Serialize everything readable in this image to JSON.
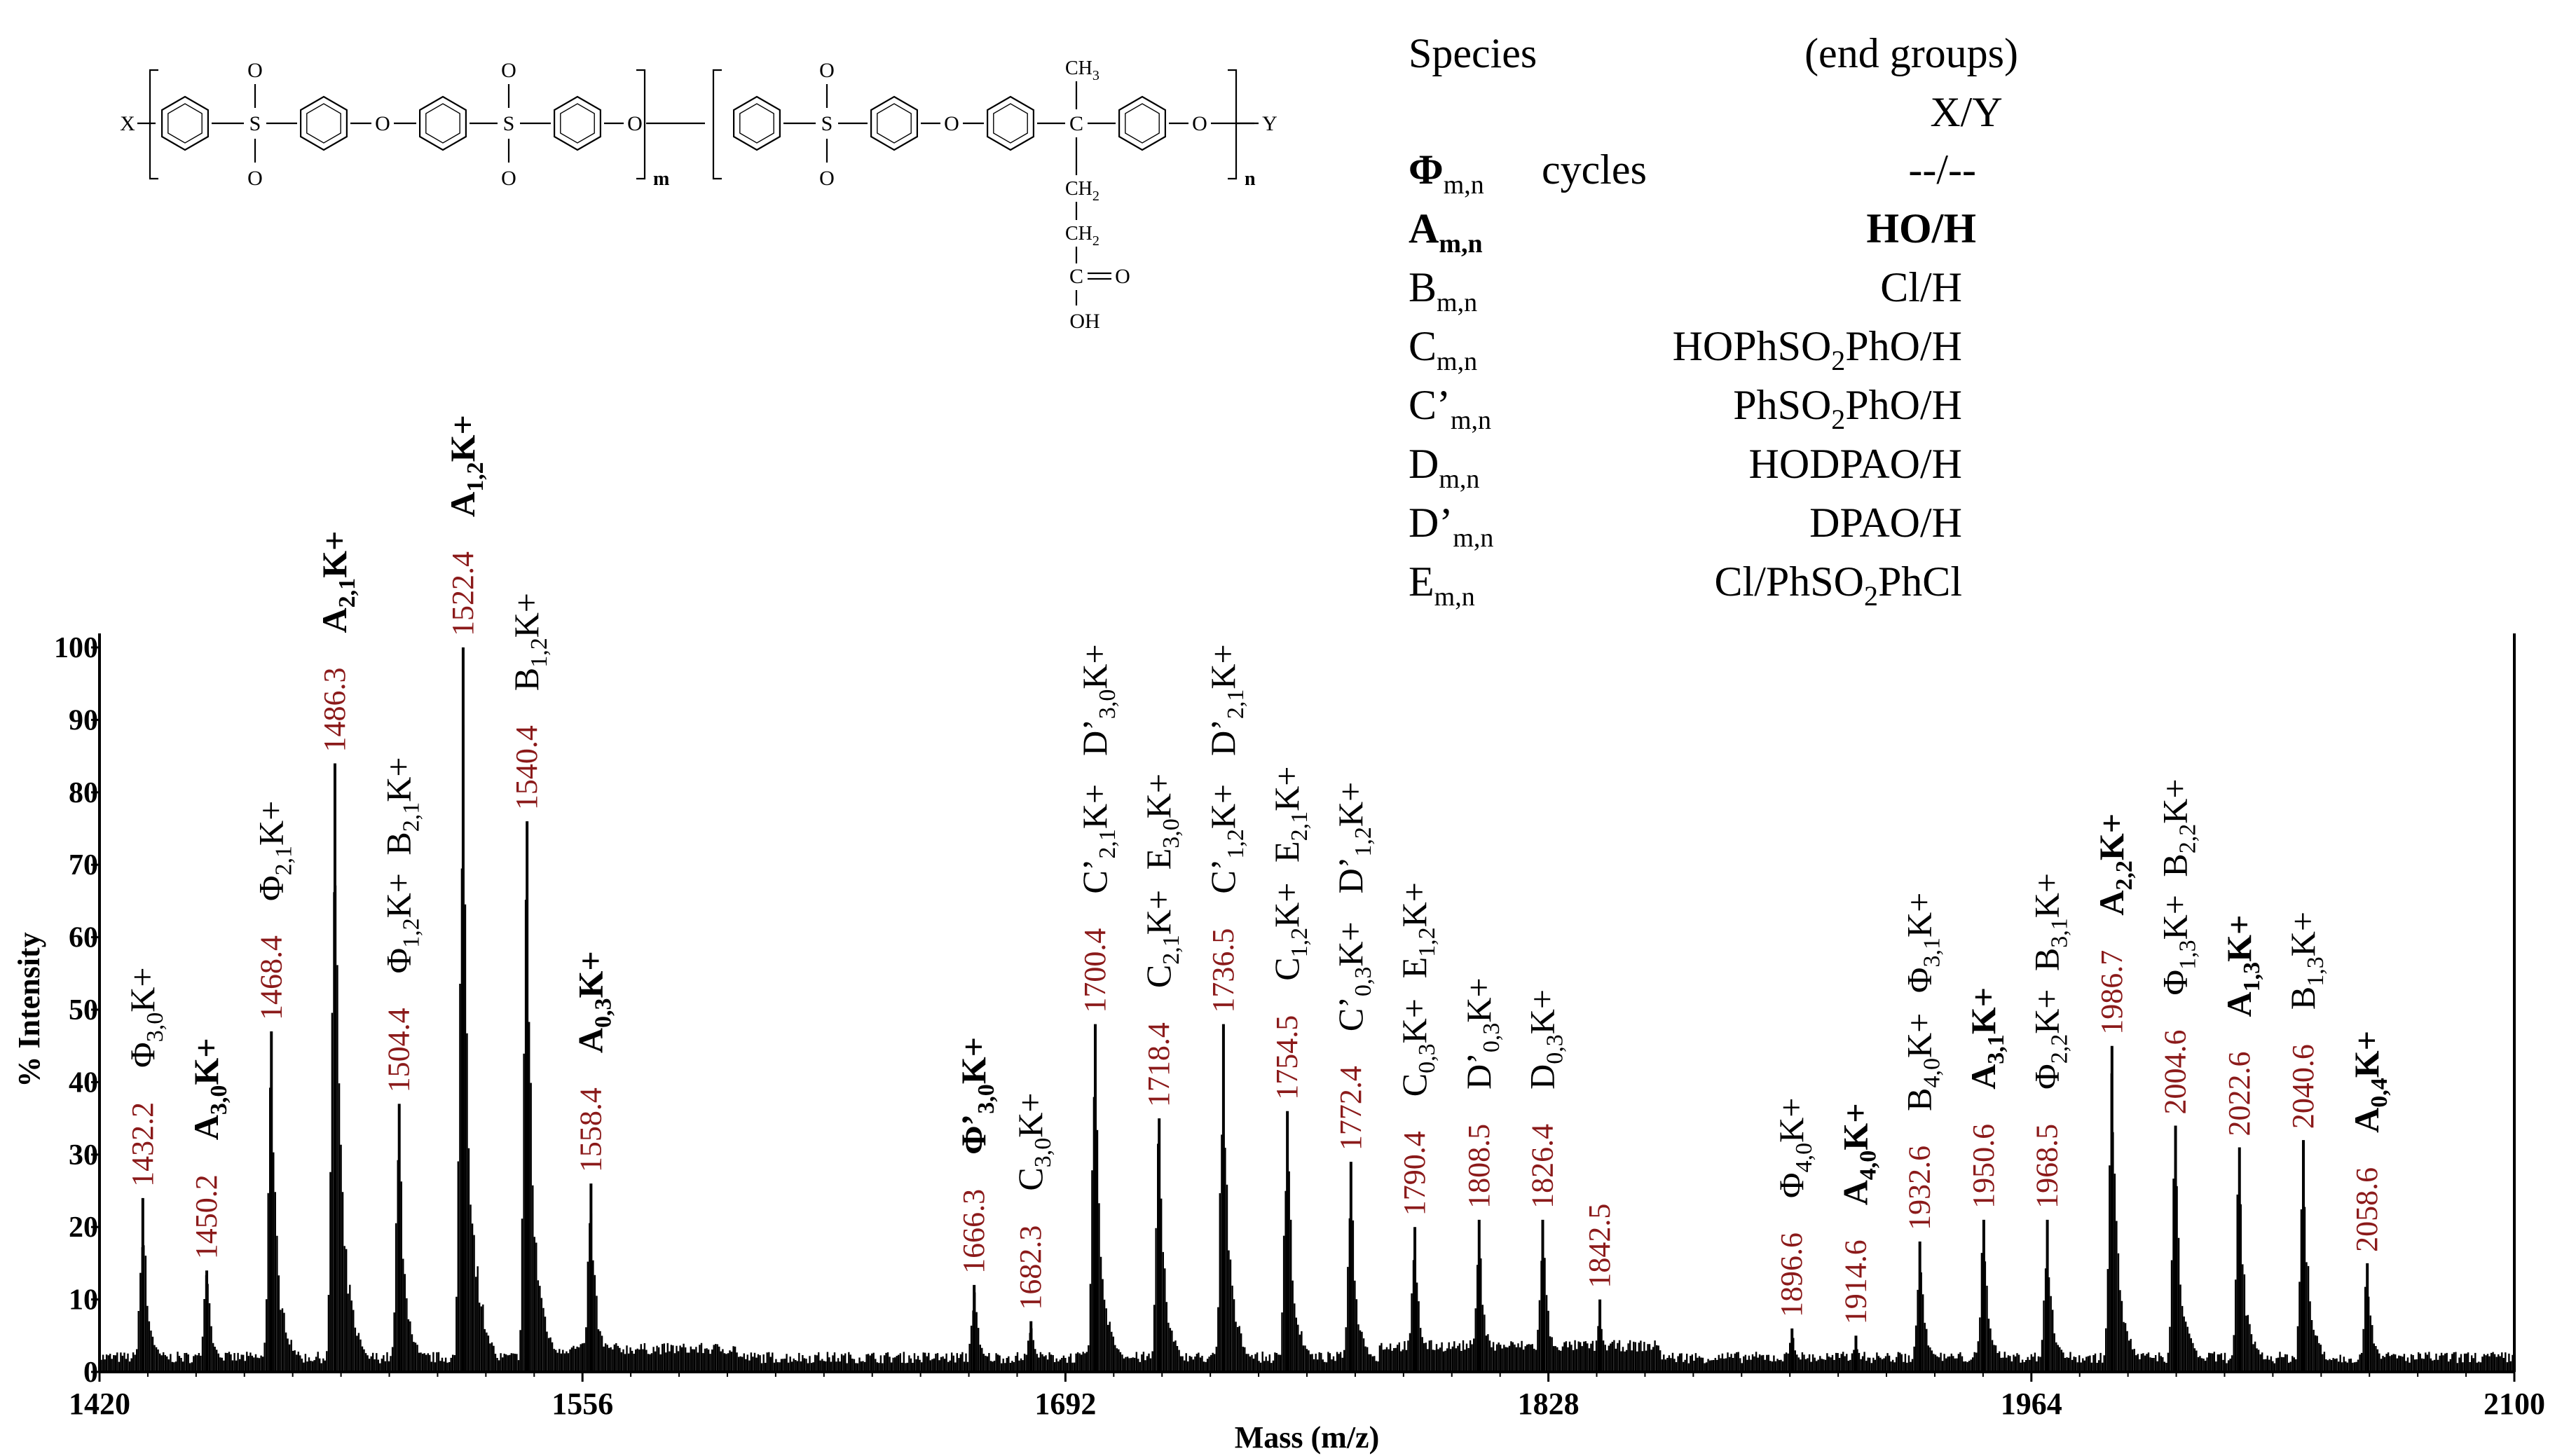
{
  "structure": {
    "x_end": "X",
    "y_end": "Y",
    "sub_m": "m",
    "sub_n": "n",
    "o": "O",
    "s": "S",
    "ch3": "CH",
    "ch3_sub": "3",
    "ch2": "CH",
    "ch2_sub": "2",
    "c": "C",
    "oh": "OH"
  },
  "legend": {
    "header_species": "Species",
    "header_end": "(end groups)",
    "header_xy": "X/Y",
    "rows": [
      {
        "sym": "Φ",
        "sub": "m,n",
        "sup": "",
        "extra": "cycles",
        "end": "--/--",
        "bold": true
      },
      {
        "sym": "A",
        "sub": "m,n",
        "sup": "",
        "extra": "",
        "end": "HO/H",
        "bold": true
      },
      {
        "sym": "B",
        "sub": "m,n",
        "sup": "",
        "extra": "",
        "end": "Cl/H",
        "bold": false
      },
      {
        "sym": "C",
        "sub": "m,n",
        "sup": "",
        "extra": "",
        "end": "HOPhSO|2|PhO/H",
        "bold": false
      },
      {
        "sym": "C’",
        "sub": "m,n",
        "sup": "",
        "extra": "",
        "end": "PhSO|2|PhO/H",
        "bold": false
      },
      {
        "sym": "D",
        "sub": "m,n",
        "sup": "",
        "extra": "",
        "end": "HODPAO/H",
        "bold": false
      },
      {
        "sym": "D’",
        "sub": "m,n",
        "sup": "",
        "extra": "",
        "end": "DPAO/H",
        "bold": false
      },
      {
        "sym": "E",
        "sub": "m,n",
        "sup": "",
        "extra": "",
        "end": "Cl/PhSO|2|PhCl",
        "bold": false
      }
    ]
  },
  "chart_data": {
    "type": "line",
    "title": "",
    "xlabel": "Mass (m/z)",
    "ylabel": "% Intensity",
    "xlim": [
      1420,
      2100
    ],
    "ylim": [
      0,
      100
    ],
    "xticks": [
      1420,
      1556,
      1692,
      1828,
      1964,
      2100
    ],
    "yticks": [
      0,
      10,
      20,
      30,
      40,
      50,
      60,
      70,
      80,
      90,
      100
    ],
    "peaks": [
      {
        "mz": 1432.2,
        "intensity": 24,
        "label": "1432.2",
        "species": "Φ",
        "sub": "3,0",
        "bold": false
      },
      {
        "mz": 1450.2,
        "intensity": 14,
        "label": "1450.2",
        "species": "A",
        "sub": "3,0",
        "bold": true
      },
      {
        "mz": 1468.4,
        "intensity": 47,
        "label": "1468.4",
        "species": "Φ",
        "sub": "2,1",
        "bold": false
      },
      {
        "mz": 1486.3,
        "intensity": 84,
        "label": "1486.3",
        "species": "A",
        "sub": "2,1",
        "bold": true
      },
      {
        "mz": 1504.4,
        "intensity": 37,
        "label": "1504.4",
        "species": "Φ",
        "sub": "1,2",
        "bold": false
      },
      {
        "mz": 1504.4,
        "intensity": 37,
        "label": "",
        "species": "B",
        "sub": "2,1",
        "bold": false
      },
      {
        "mz": 1522.4,
        "intensity": 100,
        "label": "1522.4",
        "species": "A",
        "sub": "1,2",
        "bold": true
      },
      {
        "mz": 1540.4,
        "intensity": 76,
        "label": "1540.4",
        "species": "B",
        "sub": "1,2",
        "bold": false
      },
      {
        "mz": 1558.4,
        "intensity": 26,
        "label": "1558.4",
        "species": "A",
        "sub": "0,3",
        "bold": true
      },
      {
        "mz": 1666.3,
        "intensity": 12,
        "label": "1666.3",
        "species": "Φ’",
        "sub": "3,0",
        "bold": true
      },
      {
        "mz": 1682.3,
        "intensity": 7,
        "label": "1682.3",
        "species": "C",
        "sub": "3,0",
        "bold": false
      },
      {
        "mz": 1700.4,
        "intensity": 48,
        "label": "1700.4",
        "species": "C’",
        "sub": "2,1",
        "bold": false
      },
      {
        "mz": 1700.4,
        "intensity": 48,
        "label": "",
        "species": "D’",
        "sub": "3,0",
        "bold": false
      },
      {
        "mz": 1718.4,
        "intensity": 35,
        "label": "1718.4",
        "species": "C",
        "sub": "2,1",
        "bold": false
      },
      {
        "mz": 1718.4,
        "intensity": 35,
        "label": "",
        "species": "E",
        "sub": "3,0",
        "bold": false
      },
      {
        "mz": 1736.5,
        "intensity": 48,
        "label": "1736.5",
        "species": "C’",
        "sub": "1,2",
        "bold": false
      },
      {
        "mz": 1736.5,
        "intensity": 48,
        "label": "",
        "species": "D’",
        "sub": "2,1",
        "bold": false
      },
      {
        "mz": 1754.5,
        "intensity": 36,
        "label": "1754.5",
        "species": "C",
        "sub": "1,2",
        "bold": false
      },
      {
        "mz": 1754.5,
        "intensity": 36,
        "label": "",
        "species": "E",
        "sub": "2,1",
        "bold": false
      },
      {
        "mz": 1772.4,
        "intensity": 29,
        "label": "1772.4",
        "species": "C’",
        "sub": "0,3",
        "bold": false
      },
      {
        "mz": 1772.4,
        "intensity": 29,
        "label": "",
        "species": "D’",
        "sub": "1,2",
        "bold": false
      },
      {
        "mz": 1790.4,
        "intensity": 20,
        "label": "1790.4",
        "species": "C",
        "sub": "0,3",
        "bold": false
      },
      {
        "mz": 1790.4,
        "intensity": 20,
        "label": "",
        "species": "E",
        "sub": "1,2",
        "bold": false
      },
      {
        "mz": 1808.5,
        "intensity": 21,
        "label": "1808.5",
        "species": "D’",
        "sub": "0,3",
        "bold": false
      },
      {
        "mz": 1826.4,
        "intensity": 21,
        "label": "1826.4",
        "species": "D",
        "sub": "0,3",
        "bold": false
      },
      {
        "mz": 1842.5,
        "intensity": 10,
        "label": "1842.5",
        "species": "",
        "sub": "",
        "bold": false
      },
      {
        "mz": 1896.6,
        "intensity": 6,
        "label": "1896.6",
        "species": "Φ",
        "sub": "4,0",
        "bold": false
      },
      {
        "mz": 1914.6,
        "intensity": 5,
        "label": "1914.6",
        "species": "A",
        "sub": "4,0",
        "bold": true
      },
      {
        "mz": 1932.6,
        "intensity": 18,
        "label": "1932.6",
        "species": "B",
        "sub": "4,0",
        "bold": false
      },
      {
        "mz": 1932.6,
        "intensity": 18,
        "label": "",
        "species": "Φ",
        "sub": "3,1",
        "bold": false
      },
      {
        "mz": 1950.6,
        "intensity": 21,
        "label": "1950.6",
        "species": "A",
        "sub": "3,1",
        "bold": true
      },
      {
        "mz": 1968.5,
        "intensity": 21,
        "label": "1968.5",
        "species": "Φ",
        "sub": "2,2",
        "bold": false
      },
      {
        "mz": 1968.5,
        "intensity": 21,
        "label": "",
        "species": "B",
        "sub": "3,1",
        "bold": false
      },
      {
        "mz": 1986.7,
        "intensity": 45,
        "label": "1986.7",
        "species": "A",
        "sub": "2,2",
        "bold": true
      },
      {
        "mz": 2004.6,
        "intensity": 34,
        "label": "2004.6",
        "species": "Φ",
        "sub": "1,3",
        "bold": false
      },
      {
        "mz": 2004.6,
        "intensity": 34,
        "label": "",
        "species": "B",
        "sub": "2,2",
        "bold": false
      },
      {
        "mz": 2022.6,
        "intensity": 31,
        "label": "2022.6",
        "species": "A",
        "sub": "1,3",
        "bold": true
      },
      {
        "mz": 2040.6,
        "intensity": 32,
        "label": "2040.6",
        "species": "B",
        "sub": "1,3",
        "bold": false
      },
      {
        "mz": 2058.6,
        "intensity": 15,
        "label": "2058.6",
        "species": "A",
        "sub": "0,4",
        "bold": true
      }
    ]
  }
}
